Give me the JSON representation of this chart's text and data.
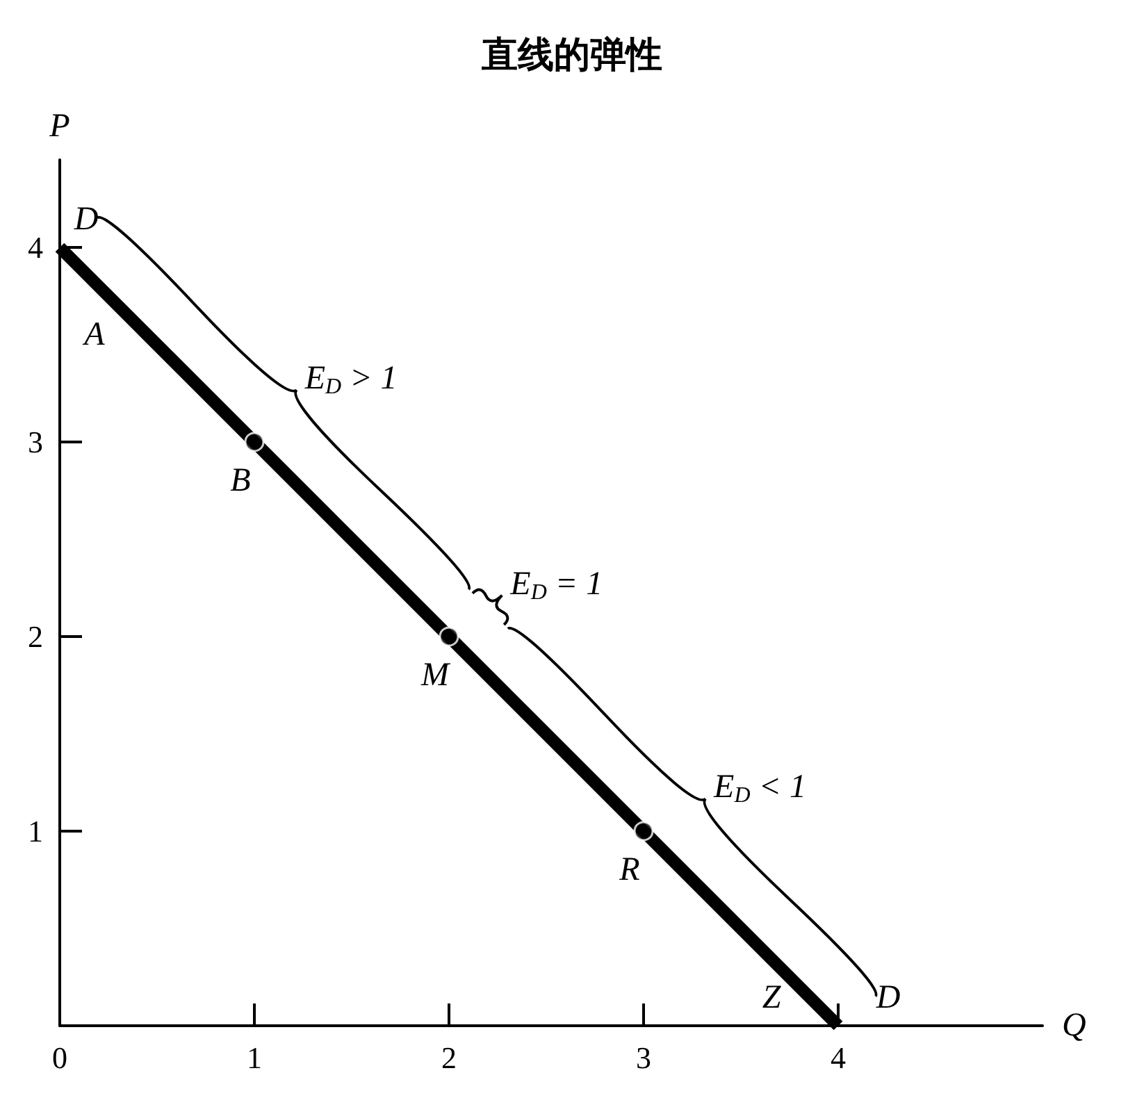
{
  "chart_data": {
    "type": "line",
    "title": "直线的弹性",
    "xlabel": "Q",
    "ylabel": "P",
    "xlim": [
      0,
      5.05
    ],
    "ylim": [
      0,
      4.45
    ],
    "xticks": [
      0,
      1,
      2,
      3,
      4
    ],
    "yticks": [
      {
        "value": 0,
        "label": null
      },
      1,
      2,
      3,
      4
    ],
    "grid": false,
    "series": [
      {
        "x": [
          0,
          4
        ],
        "values": [
          4,
          0
        ],
        "color": "#000000",
        "marker": "none"
      },
      {
        "type": "scatter",
        "x": [
          1,
          2,
          3
        ],
        "values": [
          3,
          2,
          1
        ],
        "color": "#000000",
        "marker": "circle"
      }
    ],
    "annotations": [
      {
        "text": "D",
        "x": 0,
        "y": 4
      },
      {
        "text": "A",
        "x": 0.25,
        "y": 3.75
      },
      {
        "text": "B",
        "x": 1,
        "y": 3
      },
      {
        "text": "M",
        "x": 2,
        "y": 2
      },
      {
        "text": "R",
        "x": 3,
        "y": 1
      },
      {
        "text": "Z",
        "x": 4,
        "y": 0
      },
      {
        "text": "D",
        "x": 4,
        "y": 0
      },
      "E$_{D}$ > 1",
      "E$_{D}$ = 1",
      "E$_{D}$ < 1"
    ]
  }
}
